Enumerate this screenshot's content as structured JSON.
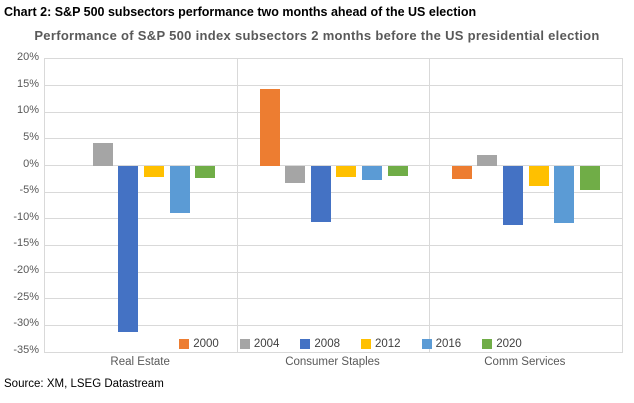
{
  "caption": "Chart 2: S&P 500 subsectors performance two months ahead of the US election",
  "source": "Source: XM, LSEG Datastream",
  "chart_data": {
    "type": "bar",
    "title": "Performance of S&P 500 index subsectors 2 months before the US presidential election",
    "categories": [
      "Real Estate",
      "Consumer Staples",
      "Comm Services"
    ],
    "series": [
      {
        "name": "2000",
        "color": "#ED7D31",
        "values": [
          null,
          14.4,
          -2.5
        ]
      },
      {
        "name": "2004",
        "color": "#A5A5A5",
        "values": [
          4.2,
          -3.3,
          2.0
        ]
      },
      {
        "name": "2008",
        "color": "#4472C4",
        "values": [
          -31.3,
          -10.6,
          -11.2
        ]
      },
      {
        "name": "2012",
        "color": "#FFC000",
        "values": [
          -2.2,
          -2.1,
          -3.8
        ]
      },
      {
        "name": "2016",
        "color": "#5B9BD5",
        "values": [
          -9.0,
          -2.7,
          -10.7
        ]
      },
      {
        "name": "2020",
        "color": "#70AD47",
        "values": [
          -2.4,
          -2.0,
          -4.6
        ]
      }
    ],
    "ylim": [
      -35,
      20
    ],
    "ytick_step": 5,
    "ytick_suffix": "%",
    "grid": true,
    "legend_position": "bottom-inside",
    "gridline_color": "#D9D9D9"
  }
}
